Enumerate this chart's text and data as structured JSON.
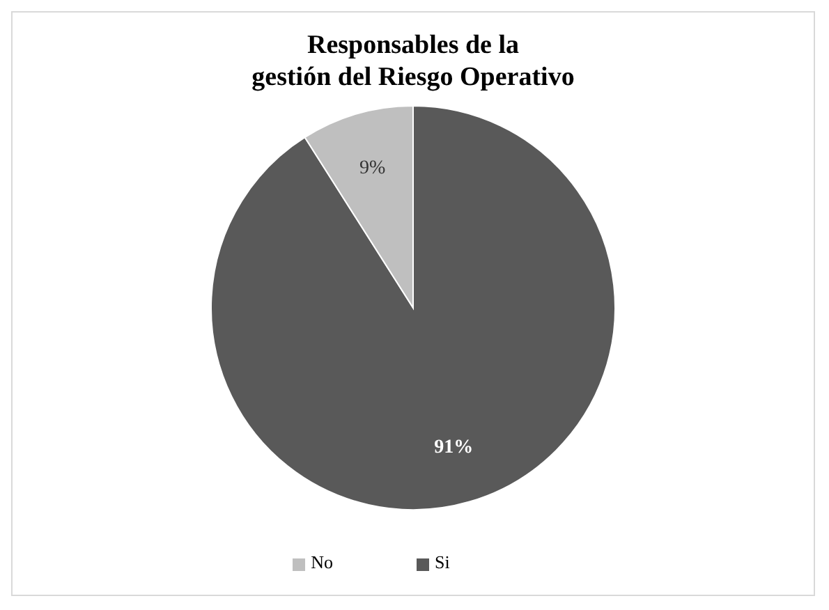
{
  "chart_data": {
    "type": "pie",
    "title": "Responsables de la\ngestión del Riesgo Operativo",
    "categories": [
      "Si",
      "No"
    ],
    "values": [
      91,
      9
    ],
    "colors": [
      "#595959",
      "#bfbfbf"
    ],
    "value_labels": [
      "91%",
      "9%"
    ],
    "legend": "bottom"
  }
}
